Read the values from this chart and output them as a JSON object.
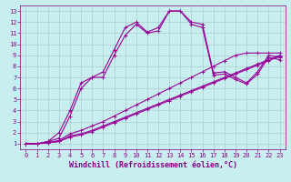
{
  "title": "",
  "xlabel": "Windchill (Refroidissement éolien,°C)",
  "ylabel": "",
  "background_color": "#c8eef0",
  "line_color": "#990099",
  "grid_color": "#aacccc",
  "xlim": [
    -0.5,
    23.5
  ],
  "ylim": [
    0.5,
    13.5
  ],
  "xticks": [
    0,
    1,
    2,
    3,
    4,
    5,
    6,
    7,
    8,
    9,
    10,
    11,
    12,
    13,
    14,
    15,
    16,
    17,
    18,
    19,
    20,
    21,
    22,
    23
  ],
  "yticks": [
    1,
    2,
    3,
    4,
    5,
    6,
    7,
    8,
    9,
    10,
    11,
    12,
    13
  ],
  "lines": [
    {
      "x": [
        0,
        1,
        2,
        3,
        4,
        5,
        6,
        7,
        8,
        9,
        10,
        11,
        12,
        13,
        14,
        15,
        16,
        17,
        18,
        19,
        20,
        21,
        22,
        23
      ],
      "y": [
        1,
        1,
        1.2,
        2,
        4,
        6.5,
        7,
        7.5,
        9.5,
        11.5,
        12,
        11.1,
        11.5,
        13,
        13,
        12,
        11.8,
        7.4,
        7.5,
        7,
        6.5,
        7.5,
        9,
        8.8
      ]
    },
    {
      "x": [
        0,
        1,
        2,
        3,
        4,
        5,
        6,
        7,
        8,
        9,
        10,
        11,
        12,
        13,
        14,
        15,
        16,
        17,
        18,
        19,
        20,
        21,
        22,
        23
      ],
      "y": [
        1,
        1,
        1.2,
        1.5,
        3.5,
        6,
        7,
        7.0,
        9.0,
        10.8,
        11.8,
        11.0,
        11.2,
        13,
        13,
        11.8,
        11.5,
        7.2,
        7.3,
        6.8,
        6.4,
        7.3,
        8.8,
        8.6
      ]
    },
    {
      "x": [
        0,
        1,
        2,
        3,
        4,
        5,
        6,
        7,
        8,
        9,
        10,
        11,
        12,
        13,
        14,
        15,
        16,
        17,
        18,
        19,
        20,
        21,
        22,
        23
      ],
      "y": [
        1.0,
        1.0,
        1.1,
        1.3,
        1.9,
        2.2,
        2.6,
        3.0,
        3.5,
        4.0,
        4.5,
        5.0,
        5.5,
        6.0,
        6.5,
        7.0,
        7.5,
        8.0,
        8.5,
        9.0,
        9.2,
        9.2,
        9.2,
        9.2
      ]
    },
    {
      "x": [
        0,
        1,
        2,
        3,
        4,
        5,
        6,
        7,
        8,
        9,
        10,
        11,
        12,
        13,
        14,
        15,
        16,
        17,
        18,
        19,
        20,
        21,
        22,
        23
      ],
      "y": [
        1.0,
        1.0,
        1.1,
        1.2,
        1.7,
        1.9,
        2.2,
        2.6,
        3.0,
        3.4,
        3.8,
        4.2,
        4.6,
        5.0,
        5.4,
        5.8,
        6.2,
        6.6,
        7.0,
        7.4,
        7.8,
        8.2,
        8.6,
        9.0
      ]
    },
    {
      "x": [
        0,
        1,
        2,
        3,
        4,
        5,
        6,
        7,
        8,
        9,
        10,
        11,
        12,
        13,
        14,
        15,
        16,
        17,
        18,
        19,
        20,
        21,
        22,
        23
      ],
      "y": [
        1.0,
        1.0,
        1.1,
        1.2,
        1.6,
        1.8,
        2.1,
        2.5,
        2.9,
        3.3,
        3.7,
        4.1,
        4.5,
        4.9,
        5.3,
        5.7,
        6.1,
        6.5,
        6.9,
        7.3,
        7.7,
        8.1,
        8.5,
        8.9
      ]
    }
  ],
  "marker": "+",
  "markersize": 3,
  "linewidth": 0.8,
  "tick_fontsize": 5,
  "label_fontsize": 6,
  "label_color": "#880088",
  "tick_color": "#880088"
}
